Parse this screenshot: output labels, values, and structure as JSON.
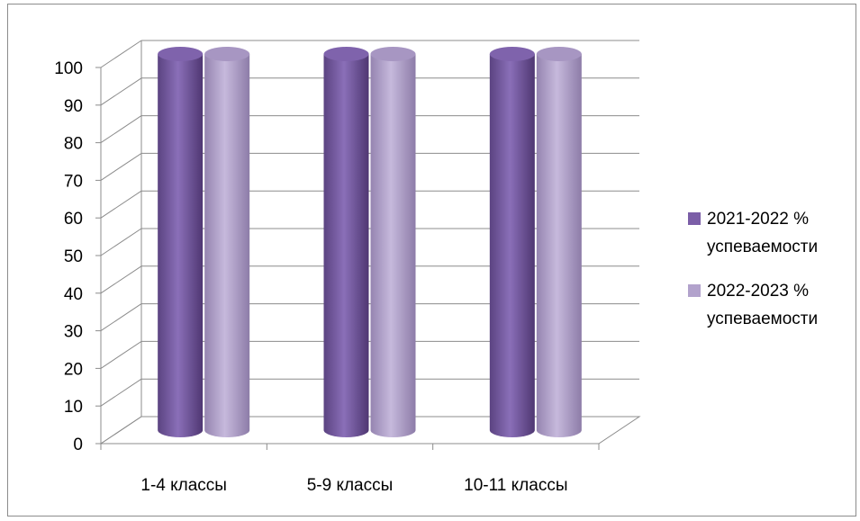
{
  "chart_data": {
    "type": "bar",
    "title": "",
    "xlabel": "",
    "ylabel": "",
    "categories": [
      "1-4 классы",
      "5-9 классы",
      "10-11 классы"
    ],
    "series": [
      {
        "name": "2021-2022 % успеваемости",
        "values": [
          100,
          100,
          100
        ],
        "color": "#7b5ea7"
      },
      {
        "name": "2022-2023 % успеваемости",
        "values": [
          100,
          100,
          100
        ],
        "color": "#b2a2cc"
      }
    ],
    "ylim": [
      0,
      100
    ],
    "yticks": [
      0,
      10,
      20,
      30,
      40,
      50,
      60,
      70,
      80,
      90,
      100
    ],
    "grid": true,
    "legend": "right",
    "style": "3d-cylinder"
  },
  "legend": {
    "items": [
      {
        "line1": "2021-2022 %",
        "line2": "успеваемости"
      },
      {
        "line1": "2022-2023 %",
        "line2": "успеваемости"
      }
    ]
  }
}
